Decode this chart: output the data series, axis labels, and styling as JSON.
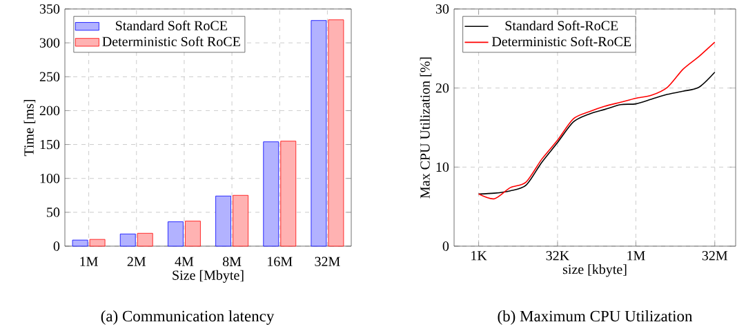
{
  "chart_data": [
    {
      "type": "bar",
      "title": "(a) Communication latency",
      "xlabel": "Size [Mbyte]",
      "ylabel": "Time [ms]",
      "categories": [
        "1M",
        "2M",
        "4M",
        "8M",
        "16M",
        "32M"
      ],
      "series": [
        {
          "name": "Standard Soft RoCE",
          "color": "#0000ff",
          "values": [
            9,
            18,
            36,
            74,
            154,
            333
          ]
        },
        {
          "name": "Deterministic Soft RoCE",
          "color": "#ff0000",
          "values": [
            10,
            19,
            37,
            75,
            155,
            334
          ]
        }
      ],
      "ylim": [
        0,
        350
      ],
      "yticks": [
        0,
        50,
        100,
        150,
        200,
        250,
        300,
        350
      ],
      "grid": true,
      "legend": "top left"
    },
    {
      "type": "line",
      "title": "(b) Maximum CPU Utilization",
      "xlabel": "size [kbyte]",
      "ylabel": "Max CPU Utilization [%]",
      "x": [
        1000,
        2000,
        4000,
        8000,
        16000,
        32000,
        64000,
        128000,
        256000,
        512000,
        1000000,
        2000000,
        4000000,
        8000000,
        16000000,
        32000000
      ],
      "series": [
        {
          "name": "Standard Soft-RoCE",
          "color": "#000000",
          "values": [
            6.6,
            6.7,
            7.0,
            7.7,
            10.6,
            13.1,
            15.7,
            16.7,
            17.3,
            17.9,
            18.0,
            18.6,
            19.2,
            19.6,
            20.1,
            22.0
          ]
        },
        {
          "name": "Deterministic Soft-RoCE",
          "color": "#ff0000",
          "values": [
            6.6,
            6.0,
            7.4,
            8.1,
            11.0,
            13.4,
            16.1,
            17.0,
            17.7,
            18.2,
            18.7,
            19.1,
            20.1,
            22.4,
            24.0,
            25.8
          ]
        }
      ],
      "log": "x",
      "xlim": [
        340,
        80000000
      ],
      "xticks": [
        {
          "value": 1000,
          "label": "1K"
        },
        {
          "value": 32000,
          "label": "32K"
        },
        {
          "value": 1000000,
          "label": "1M"
        },
        {
          "value": 32000000,
          "label": "32M"
        }
      ],
      "ylim": [
        0,
        30
      ],
      "yticks": [
        0,
        10,
        20,
        30
      ],
      "grid": true,
      "legend": "top left",
      "marker": "none",
      "line_style": "solid"
    }
  ]
}
